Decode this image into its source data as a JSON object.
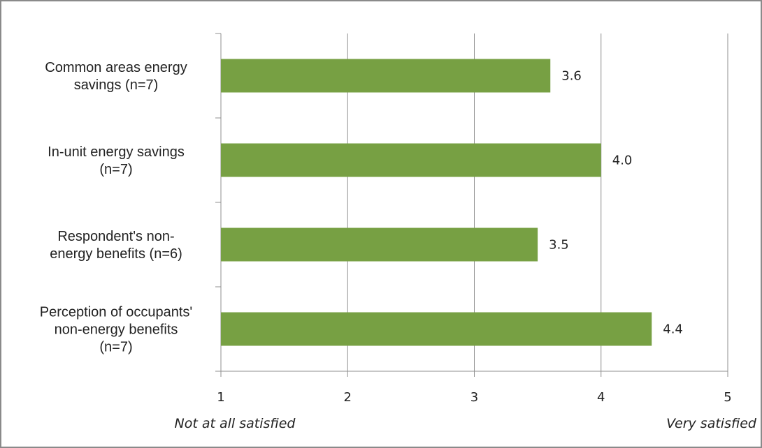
{
  "chart_data": {
    "type": "bar",
    "orientation": "horizontal",
    "categories": [
      [
        "Common areas energy",
        "savings (n=7)"
      ],
      [
        "In-unit energy savings",
        "(n=7)"
      ],
      [
        "Respondent's non-",
        "energy benefits (n=6)"
      ],
      [
        "Perception of occupants'",
        "non-energy benefits",
        "(n=7)"
      ]
    ],
    "values": [
      3.6,
      4.0,
      3.5,
      4.4
    ],
    "data_labels": [
      "3.6",
      "4.0",
      "3.5",
      "4.4"
    ],
    "xlim": [
      1,
      5
    ],
    "xticks": [
      1,
      2,
      3,
      4,
      5
    ],
    "xtick_labels": [
      "1",
      "2",
      "3",
      "4",
      "5"
    ],
    "x_min_label": "Not at all satisfied",
    "x_max_label": "Very satisfied",
    "grid": true,
    "colors": {
      "bar": "#77a043",
      "grid": "#8f8f8f",
      "frame": "#8a8a8a",
      "text": "#222222"
    }
  }
}
